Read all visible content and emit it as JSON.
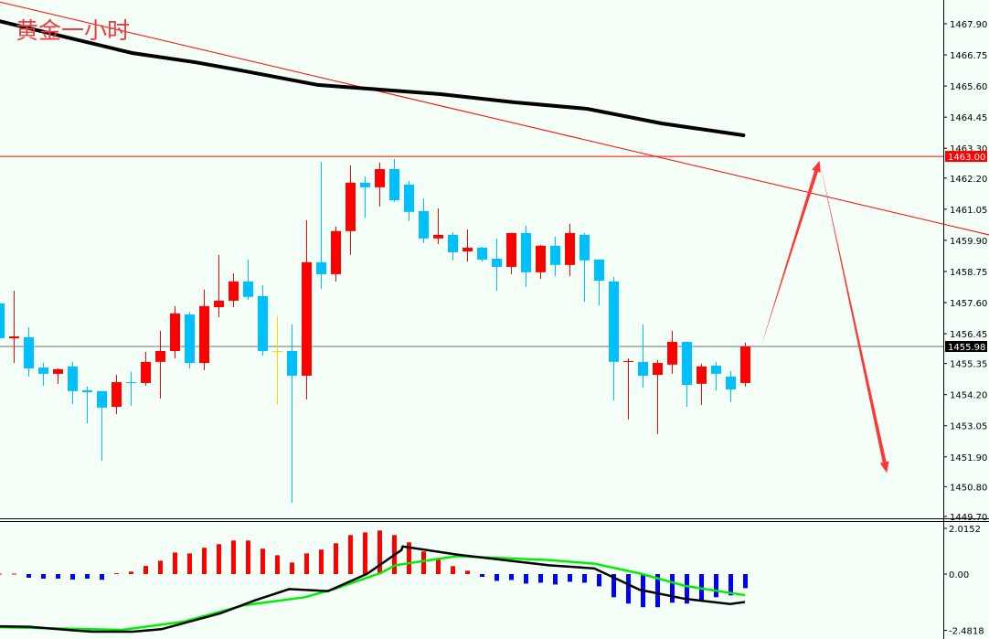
{
  "title": "黄金一小时",
  "chart_data": [
    {
      "type": "candlestick",
      "title": "黄金一小时",
      "ylim": [
        1449.7,
        1467.9
      ],
      "y_ticks": [
        "1467.90",
        "1466.75",
        "1465.60",
        "1464.45",
        "1463.30",
        "1462.20",
        "1461.05",
        "1459.90",
        "1458.75",
        "1457.60",
        "1456.45",
        "1455.35",
        "1454.20",
        "1453.05",
        "1451.90",
        "1450.80",
        "1449.70"
      ],
      "colors": {
        "bull": "#FF0000",
        "bear": "#00BFFF",
        "neutral": "#FFD700",
        "ma": "#000000",
        "trendline": "#FF0000",
        "arrows": "#FF3535",
        "current_line": "#707070"
      },
      "candles_ohlc": [
        [
          1457.57,
          1457.63,
          1456.22,
          1456.28
        ],
        [
          1456.28,
          1458.04,
          1455.37,
          1456.35
        ],
        [
          1456.32,
          1456.69,
          1454.87,
          1455.17
        ],
        [
          1455.2,
          1455.37,
          1454.53,
          1454.97
        ],
        [
          1454.97,
          1455.17,
          1454.6,
          1455.14
        ],
        [
          1455.24,
          1455.41,
          1453.85,
          1454.33
        ],
        [
          1454.36,
          1454.5,
          1453.14,
          1454.29
        ],
        [
          1454.33,
          1454.33,
          1451.76,
          1453.72
        ],
        [
          1453.75,
          1454.93,
          1453.48,
          1454.66
        ],
        [
          1454.66,
          1455.04,
          1453.79,
          1454.63
        ],
        [
          1454.63,
          1455.78,
          1454.53,
          1455.41
        ],
        [
          1455.41,
          1456.56,
          1454.06,
          1455.81
        ],
        [
          1455.81,
          1457.47,
          1455.54,
          1457.2
        ],
        [
          1457.16,
          1457.26,
          1455.17,
          1455.37
        ],
        [
          1455.37,
          1458.08,
          1455.1,
          1457.47
        ],
        [
          1457.43,
          1459.36,
          1457.06,
          1457.67
        ],
        [
          1457.67,
          1458.68,
          1457.43,
          1458.38
        ],
        [
          1458.38,
          1459.19,
          1457.7,
          1457.81
        ],
        [
          1457.84,
          1458.24,
          1455.64,
          1455.81
        ],
        [
          1455.81,
          1457.13,
          1453.82,
          1455.81
        ],
        [
          1455.81,
          1456.79,
          1450.21,
          1454.9
        ],
        [
          1454.9,
          1460.64,
          1454.02,
          1459.09
        ],
        [
          1459.09,
          1462.8,
          1458.11,
          1458.65
        ],
        [
          1458.65,
          1460.41,
          1458.38,
          1460.24
        ],
        [
          1460.24,
          1462.67,
          1459.36,
          1462.03
        ],
        [
          1462.03,
          1462.26,
          1460.74,
          1461.86
        ],
        [
          1461.86,
          1462.77,
          1461.15,
          1462.53
        ],
        [
          1462.53,
          1462.9,
          1461.32,
          1461.38
        ],
        [
          1461.96,
          1462.09,
          1460.61,
          1460.95
        ],
        [
          1460.98,
          1461.45,
          1459.8,
          1459.97
        ],
        [
          1459.97,
          1461.08,
          1459.76,
          1460.1
        ],
        [
          1460.1,
          1460.2,
          1459.16,
          1459.46
        ],
        [
          1459.49,
          1460.3,
          1459.12,
          1459.63
        ],
        [
          1459.63,
          1459.66,
          1459.12,
          1459.19
        ],
        [
          1459.22,
          1459.97,
          1458.04,
          1458.92
        ],
        [
          1458.92,
          1460.17,
          1458.65,
          1460.17
        ],
        [
          1460.17,
          1460.44,
          1458.18,
          1458.72
        ],
        [
          1458.72,
          1459.73,
          1458.48,
          1459.7
        ],
        [
          1459.7,
          1460.03,
          1458.58,
          1458.99
        ],
        [
          1458.99,
          1460.51,
          1458.58,
          1460.17
        ],
        [
          1460.1,
          1460.17,
          1457.63,
          1459.16
        ],
        [
          1459.19,
          1459.19,
          1457.5,
          1458.41
        ],
        [
          1458.38,
          1458.55,
          1453.99,
          1455.41
        ],
        [
          1455.41,
          1455.54,
          1453.28,
          1455.44
        ],
        [
          1455.41,
          1456.79,
          1454.46,
          1454.9
        ],
        [
          1454.93,
          1455.48,
          1452.74,
          1455.37
        ],
        [
          1455.31,
          1456.56,
          1454.97,
          1456.15
        ],
        [
          1456.15,
          1456.15,
          1453.75,
          1454.56
        ],
        [
          1454.6,
          1455.34,
          1453.82,
          1455.24
        ],
        [
          1455.27,
          1455.41,
          1454.36,
          1454.97
        ],
        [
          1454.87,
          1455.07,
          1453.92,
          1454.39
        ],
        [
          1454.63,
          1456.12,
          1454.5,
          1455.98
        ]
      ],
      "moving_average": [
        [
          0,
          1468.0
        ],
        [
          9.1,
          1466.82
        ],
        [
          13.4,
          1466.48
        ],
        [
          16.8,
          1466.15
        ],
        [
          21.8,
          1465.64
        ],
        [
          30.2,
          1465.3
        ],
        [
          35.2,
          1465.0
        ],
        [
          40.2,
          1464.76
        ],
        [
          45.3,
          1464.22
        ],
        [
          50.9,
          1463.78
        ]
      ],
      "trendline": [
        [
          0,
          1468.71
        ],
        [
          67.7,
          1460.1
        ]
      ],
      "horizontal_line": {
        "value": 1463.0,
        "label": "1463.00"
      },
      "current_price": {
        "value": 1455.98,
        "label": "1455.98"
      },
      "arrows": [
        {
          "from": [
            52.1,
            1455.98
          ],
          "to": [
            56.1,
            1462.84
          ]
        },
        {
          "from": [
            56.1,
            1462.84
          ],
          "to": [
            60.7,
            1451.31
          ]
        }
      ]
    },
    {
      "type": "macd",
      "ylim": [
        -2.4818,
        2.0152
      ],
      "y_ticks": [
        "2.0152",
        "0.00",
        "-2.4818"
      ],
      "colors": {
        "positive": "#FF0000",
        "negative": "#0000FF",
        "macd": "#000000",
        "signal": "#00EE00"
      },
      "histogram": [
        0.02,
        0.02,
        -0.16,
        -0.2,
        -0.2,
        -0.24,
        -0.2,
        -0.25,
        0.04,
        0.11,
        0.36,
        0.59,
        0.95,
        0.91,
        1.16,
        1.32,
        1.48,
        1.48,
        1.12,
        0.83,
        0.51,
        0.91,
        1.08,
        1.36,
        1.72,
        1.84,
        1.92,
        1.72,
        1.4,
        1.0,
        0.71,
        0.35,
        0.15,
        -0.12,
        -0.3,
        -0.26,
        -0.42,
        -0.38,
        -0.46,
        -0.34,
        -0.38,
        -0.54,
        -1.02,
        -1.3,
        -1.46,
        -1.46,
        -1.26,
        -1.3,
        -1.14,
        -1.02,
        -0.94,
        -0.62
      ],
      "macd_line": [
        [
          0,
          -2.3
        ],
        [
          2.75,
          -2.3
        ],
        [
          6.9,
          -2.49
        ],
        [
          12,
          -2.54
        ],
        [
          14.6,
          -2.43
        ],
        [
          19.9,
          -1.73
        ],
        [
          23,
          -1.16
        ],
        [
          26.1,
          -0.66
        ],
        [
          30,
          -0.75
        ],
        [
          36,
          0.01
        ],
        [
          41,
          0.95
        ],
        [
          43.8,
          1.06
        ],
        [
          27.6,
          1.22
        ]
      ],
      "macd_points": [
        [
          0,
          -2.3
        ],
        [
          2.75,
          -2.3
        ],
        [
          6.9,
          -2.49
        ],
        [
          12,
          -2.54
        ],
        [
          14.6,
          -2.43
        ],
        [
          19.9,
          -1.73
        ],
        [
          23,
          -1.16
        ],
        [
          26.1,
          -0.66
        ],
        [
          29.6,
          -0.75
        ],
        [
          33.1,
          0.01
        ],
        [
          26.1,
          0.0
        ]
      ],
      "macd_series": [
        [
          0,
          -2.3
        ],
        [
          2.7,
          -2.3
        ],
        [
          6.9,
          -2.49
        ],
        [
          12,
          -2.54
        ],
        [
          14.6,
          -2.43
        ],
        [
          19.9,
          -1.73
        ],
        [
          23,
          -1.16
        ],
        [
          26.1,
          -0.66
        ],
        [
          29.6,
          -0.75
        ],
        [
          33.1,
          0.01
        ],
        [
          36.2,
          1.06
        ],
        [
          27.6,
          1.22
        ]
      ],
      "signal_series": [
        [
          0,
          -2.34
        ],
        [
          8.4,
          -2.46
        ],
        [
          12.6,
          -2.1
        ],
        [
          16.7,
          -1.38
        ],
        [
          20.9,
          -1.02
        ],
        [
          23,
          -0.64
        ],
        [
          26.1,
          0.05
        ],
        [
          27.1,
          0.39
        ],
        [
          31.3,
          0.79
        ],
        [
          37.6,
          0.62
        ],
        [
          40.7,
          0.46
        ],
        [
          43.8,
          0.03
        ],
        [
          46.9,
          -0.52
        ],
        [
          51,
          -0.93
        ]
      ]
    }
  ]
}
